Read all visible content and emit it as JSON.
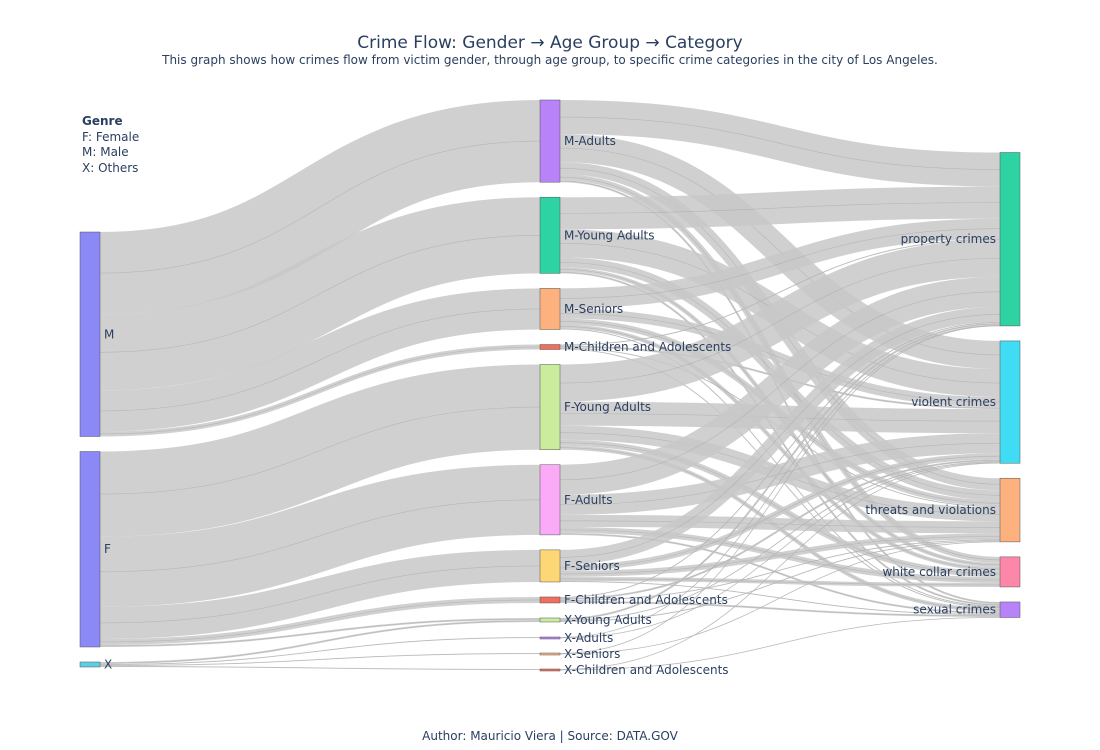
{
  "title": "Crime Flow: Gender → Age Group → Category",
  "subtitle": "This graph shows how crimes flow from victim gender, through age group, to specific crime categories in the city of Los Angeles.",
  "legend": {
    "title": "Genre",
    "items": [
      "F: Female",
      "M: Male",
      "X: Others"
    ]
  },
  "footer": "Author: Mauricio Viera | Source: DATA.GOV",
  "colors": {
    "link": "#c8c8c8",
    "link_stroke": "#888888",
    "node_stroke": "#555555"
  },
  "chart_data": {
    "type": "sankey",
    "title": "Crime Flow: Gender → Age Group → Category",
    "nodes": [
      {
        "id": "M",
        "label": "M",
        "column": 0,
        "color": "#8a89f6"
      },
      {
        "id": "F",
        "label": "F",
        "column": 0,
        "color": "#8a89f6"
      },
      {
        "id": "X",
        "label": "X",
        "column": 0,
        "color": "#5ccfe6"
      },
      {
        "id": "M-Adults",
        "label": "M-Adults",
        "column": 1,
        "color": "#b882f8"
      },
      {
        "id": "M-Young Adults",
        "label": "M-Young Adults",
        "column": 1,
        "color": "#2ed3a4"
      },
      {
        "id": "M-Seniors",
        "label": "M-Seniors",
        "column": 1,
        "color": "#fdb17e"
      },
      {
        "id": "M-Children and Adolescents",
        "label": "M-Children and Adolescents",
        "column": 1,
        "color": "#ef6f5c"
      },
      {
        "id": "F-Young Adults",
        "label": "F-Young Adults",
        "column": 1,
        "color": "#c9ec9d"
      },
      {
        "id": "F-Adults",
        "label": "F-Adults",
        "column": 1,
        "color": "#fbaaf8"
      },
      {
        "id": "F-Seniors",
        "label": "F-Seniors",
        "column": 1,
        "color": "#fdd776"
      },
      {
        "id": "F-Children and Adolescents",
        "label": "F-Children and Adolescents",
        "column": 1,
        "color": "#ef6f5c"
      },
      {
        "id": "X-Young Adults",
        "label": "X-Young Adults",
        "column": 1,
        "color": "#c9ec9d"
      },
      {
        "id": "X-Adults",
        "label": "X-Adults",
        "column": 1,
        "color": "#b882f8"
      },
      {
        "id": "X-Seniors",
        "label": "X-Seniors",
        "column": 1,
        "color": "#fdb17e"
      },
      {
        "id": "X-Children and Adolescents",
        "label": "X-Children and Adolescents",
        "column": 1,
        "color": "#ef6f5c"
      },
      {
        "id": "property crimes",
        "label": "property crimes",
        "column": 2,
        "color": "#2ed3a4"
      },
      {
        "id": "violent crimes",
        "label": "violent crimes",
        "column": 2,
        "color": "#3fdcf4"
      },
      {
        "id": "threats and violations",
        "label": "threats and violations",
        "column": 2,
        "color": "#fdb17e"
      },
      {
        "id": "white collar crimes",
        "label": "white collar crimes",
        "column": 2,
        "color": "#fc87a8"
      },
      {
        "id": "sexual crimes",
        "label": "sexual crimes",
        "column": 2,
        "color": "#b882f8"
      }
    ],
    "links": [
      {
        "source": "M",
        "target": "M-Adults",
        "value": 82
      },
      {
        "source": "M",
        "target": "M-Young Adults",
        "value": 76
      },
      {
        "source": "M",
        "target": "M-Seniors",
        "value": 41
      },
      {
        "source": "M",
        "target": "M-Children and Adolescents",
        "value": 5
      },
      {
        "source": "F",
        "target": "F-Young Adults",
        "value": 85
      },
      {
        "source": "F",
        "target": "F-Adults",
        "value": 70
      },
      {
        "source": "F",
        "target": "F-Seniors",
        "value": 32
      },
      {
        "source": "F",
        "target": "F-Children and Adolescents",
        "value": 6
      },
      {
        "source": "F",
        "target": "X-Young Adults",
        "value": 2
      },
      {
        "source": "X",
        "target": "X-Young Adults",
        "value": 2
      },
      {
        "source": "X",
        "target": "X-Adults",
        "value": 1
      },
      {
        "source": "X",
        "target": "X-Seniors",
        "value": 1
      },
      {
        "source": "X",
        "target": "X-Children and Adolescents",
        "value": 1
      },
      {
        "source": "M-Adults",
        "target": "property crimes",
        "value": 34
      },
      {
        "source": "M-Adults",
        "target": "violent crimes",
        "value": 28
      },
      {
        "source": "M-Adults",
        "target": "threats and violations",
        "value": 12
      },
      {
        "source": "M-Adults",
        "target": "white collar crimes",
        "value": 6
      },
      {
        "source": "M-Adults",
        "target": "sexual crimes",
        "value": 2
      },
      {
        "source": "M-Young Adults",
        "target": "property crimes",
        "value": 32
      },
      {
        "source": "M-Young Adults",
        "target": "violent crimes",
        "value": 28
      },
      {
        "source": "M-Young Adults",
        "target": "threats and violations",
        "value": 10
      },
      {
        "source": "M-Young Adults",
        "target": "white collar crimes",
        "value": 4
      },
      {
        "source": "M-Young Adults",
        "target": "sexual crimes",
        "value": 2
      },
      {
        "source": "M-Seniors",
        "target": "property crimes",
        "value": 20
      },
      {
        "source": "M-Seniors",
        "target": "violent crimes",
        "value": 10
      },
      {
        "source": "M-Seniors",
        "target": "threats and violations",
        "value": 6
      },
      {
        "source": "M-Seniors",
        "target": "white collar crimes",
        "value": 4
      },
      {
        "source": "M-Seniors",
        "target": "sexual crimes",
        "value": 1
      },
      {
        "source": "M-Children and Adolescents",
        "target": "property crimes",
        "value": 1
      },
      {
        "source": "M-Children and Adolescents",
        "target": "violent crimes",
        "value": 2
      },
      {
        "source": "M-Children and Adolescents",
        "target": "threats and violations",
        "value": 1
      },
      {
        "source": "M-Children and Adolescents",
        "target": "sexual crimes",
        "value": 1
      },
      {
        "source": "F-Young Adults",
        "target": "property crimes",
        "value": 37
      },
      {
        "source": "F-Young Adults",
        "target": "violent crimes",
        "value": 24
      },
      {
        "source": "F-Young Adults",
        "target": "threats and violations",
        "value": 14
      },
      {
        "source": "F-Young Adults",
        "target": "white collar crimes",
        "value": 6
      },
      {
        "source": "F-Young Adults",
        "target": "sexual crimes",
        "value": 4
      },
      {
        "source": "F-Adults",
        "target": "property crimes",
        "value": 30
      },
      {
        "source": "F-Adults",
        "target": "violent crimes",
        "value": 20
      },
      {
        "source": "F-Adults",
        "target": "threats and violations",
        "value": 12
      },
      {
        "source": "F-Adults",
        "target": "white collar crimes",
        "value": 6
      },
      {
        "source": "F-Adults",
        "target": "sexual crimes",
        "value": 2
      },
      {
        "source": "F-Seniors",
        "target": "property crimes",
        "value": 15
      },
      {
        "source": "F-Seniors",
        "target": "violent crimes",
        "value": 6
      },
      {
        "source": "F-Seniors",
        "target": "threats and violations",
        "value": 6
      },
      {
        "source": "F-Seniors",
        "target": "white collar crimes",
        "value": 4
      },
      {
        "source": "F-Seniors",
        "target": "sexual crimes",
        "value": 1
      },
      {
        "source": "F-Children and Adolescents",
        "target": "property crimes",
        "value": 1
      },
      {
        "source": "F-Children and Adolescents",
        "target": "violent crimes",
        "value": 2
      },
      {
        "source": "F-Children and Adolescents",
        "target": "threats and violations",
        "value": 1
      },
      {
        "source": "F-Children and Adolescents",
        "target": "sexual crimes",
        "value": 2
      },
      {
        "source": "X-Young Adults",
        "target": "property crimes",
        "value": 2
      },
      {
        "source": "X-Young Adults",
        "target": "violent crimes",
        "value": 1
      },
      {
        "source": "X-Young Adults",
        "target": "threats and violations",
        "value": 1
      },
      {
        "source": "X-Adults",
        "target": "property crimes",
        "value": 0.5
      },
      {
        "source": "X-Adults",
        "target": "violent crimes",
        "value": 0.5
      },
      {
        "source": "X-Seniors",
        "target": "property crimes",
        "value": 0.5
      },
      {
        "source": "X-Seniors",
        "target": "threats and violations",
        "value": 0.5
      },
      {
        "source": "X-Children and Adolescents",
        "target": "violent crimes",
        "value": 0.5
      },
      {
        "source": "X-Children and Adolescents",
        "target": "sexual crimes",
        "value": 0.5
      }
    ]
  }
}
